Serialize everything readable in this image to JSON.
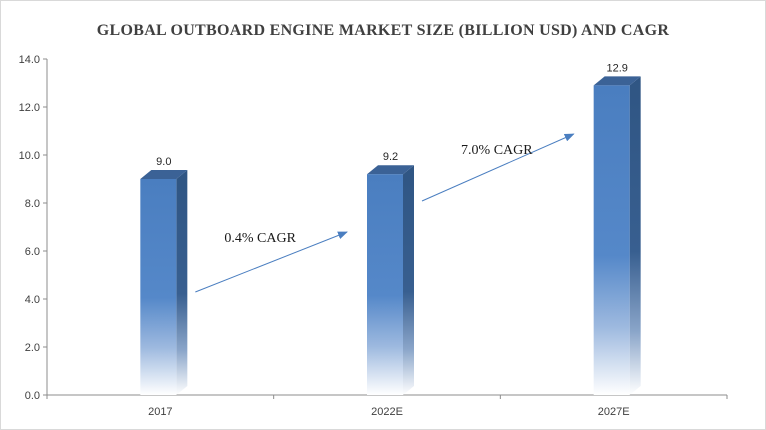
{
  "chart_data": {
    "type": "bar",
    "title": "GLOBAL OUTBOARD ENGINE MARKET SIZE  (BILLION USD) AND CAGR",
    "categories": [
      "2017",
      "2022E",
      "2027E"
    ],
    "values": [
      9.0,
      9.2,
      12.9
    ],
    "data_labels": [
      "9.0",
      "9.2",
      "12.9"
    ],
    "y_ticks": [
      "0.0",
      "2.0",
      "4.0",
      "6.0",
      "8.0",
      "10.0",
      "12.0",
      "14.0"
    ],
    "ylim": [
      0,
      14
    ],
    "xlabel": "",
    "ylabel": "",
    "grid": false,
    "bar_color": "#4f81bd",
    "annotations": [
      {
        "text": "0.4% CAGR",
        "from": "2017",
        "to": "2022E"
      },
      {
        "text": "7.0% CAGR",
        "from": "2022E",
        "to": "2027E"
      }
    ]
  }
}
